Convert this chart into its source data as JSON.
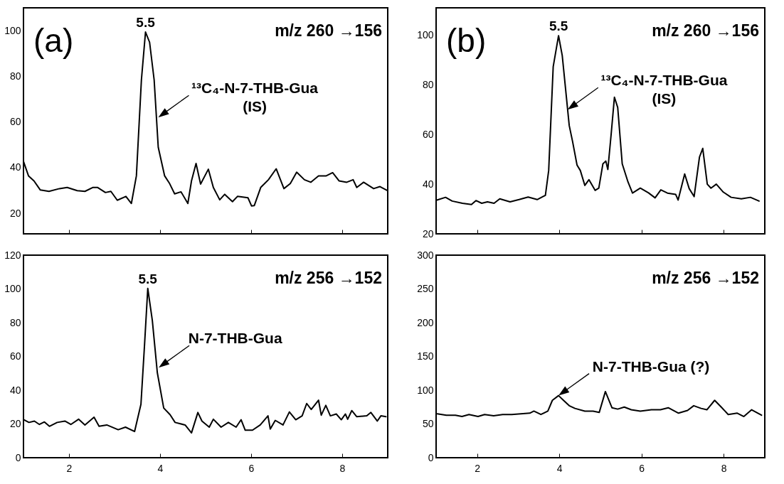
{
  "chart_data": [
    {
      "type": "line",
      "title": "(a)",
      "color": "#000000",
      "xlim": [
        1,
        9
      ],
      "xticks": [
        2,
        4,
        6,
        8
      ],
      "ylim": [
        11,
        110
      ],
      "yticks": [
        20,
        40,
        60,
        80,
        100
      ],
      "tick_labels": "y",
      "annotations": [
        "m/z 260 →156",
        {
          "text": "5.5",
          "x": 3.68,
          "y": 99.4
        },
        {
          "text": "¹³C₄-N-7-THB-Gua\n(IS)",
          "x": 3.96,
          "y": 62.0
        }
      ],
      "x": [
        1.0,
        1.11,
        1.23,
        1.37,
        1.56,
        1.79,
        1.96,
        2.18,
        2.35,
        2.52,
        2.63,
        2.8,
        2.92,
        3.06,
        3.25,
        3.37,
        3.48,
        3.59,
        3.68,
        3.77,
        3.87,
        3.96,
        4.1,
        4.21,
        4.32,
        4.46,
        4.61,
        4.69,
        4.79,
        4.89,
        5.06,
        5.17,
        5.31,
        5.42,
        5.59,
        5.7,
        5.93,
        6.01,
        6.07,
        6.21,
        6.38,
        6.55,
        6.72,
        6.86,
        7.0,
        7.17,
        7.31,
        7.48,
        7.65,
        7.79,
        7.93,
        8.1,
        8.24,
        8.32,
        8.47,
        8.69,
        8.83,
        9.0
      ],
      "values": [
        42.7,
        36.4,
        34.2,
        30.2,
        29.6,
        30.8,
        31.3,
        29.9,
        29.6,
        31.3,
        31.3,
        29.1,
        29.6,
        25.7,
        27.4,
        24.3,
        36.4,
        78.4,
        99.4,
        94.9,
        78.4,
        48.9,
        36.4,
        33.0,
        28.5,
        29.4,
        24.3,
        34.2,
        41.8,
        32.8,
        39.3,
        31.3,
        25.9,
        28.3,
        25.1,
        27.4,
        26.8,
        23.2,
        23.4,
        31.3,
        34.7,
        39.5,
        30.8,
        33.0,
        38.0,
        34.7,
        33.6,
        36.4,
        36.4,
        37.8,
        34.2,
        33.6,
        34.7,
        31.3,
        33.6,
        30.8,
        31.7,
        29.9
      ]
    },
    {
      "type": "line",
      "title": "(b)",
      "color": "#000000",
      "xlim": [
        1,
        9
      ],
      "xticks": [
        2,
        4,
        6,
        8
      ],
      "ylim": [
        20,
        111
      ],
      "yticks": [
        20,
        40,
        60,
        80,
        100
      ],
      "tick_labels": "y",
      "annotations": [
        "m/z 260 →156",
        {
          "text": "5.5",
          "x": 3.98,
          "y": 99.8
        },
        {
          "text": "¹³C₄-N-7-THB-Gua\n(IS)",
          "x": 4.2,
          "y": 70
        }
      ],
      "x": [
        1.02,
        1.23,
        1.39,
        1.64,
        1.86,
        1.97,
        2.11,
        2.25,
        2.41,
        2.55,
        2.8,
        3.02,
        3.24,
        3.46,
        3.66,
        3.74,
        3.85,
        3.98,
        4.07,
        4.24,
        4.32,
        4.43,
        4.51,
        4.62,
        4.72,
        4.87,
        4.96,
        5.06,
        5.13,
        5.18,
        5.26,
        5.34,
        5.42,
        5.53,
        5.67,
        5.78,
        5.97,
        6.17,
        6.33,
        6.47,
        6.63,
        6.83,
        6.89,
        7.05,
        7.16,
        7.28,
        7.41,
        7.49,
        7.6,
        7.69,
        7.82,
        7.99,
        8.18,
        8.43,
        8.65,
        8.86
      ],
      "values": [
        33.6,
        34.7,
        33.2,
        32.3,
        31.8,
        33.4,
        32.3,
        32.9,
        32.3,
        34.1,
        32.9,
        33.8,
        34.8,
        33.8,
        35.5,
        45.5,
        87.3,
        99.8,
        91.8,
        63.6,
        57.3,
        47.7,
        45.5,
        39.5,
        41.8,
        37.5,
        38.4,
        48.2,
        49.3,
        45.9,
        60.0,
        75.0,
        70.9,
        48.2,
        40.9,
        36.4,
        38.4,
        36.5,
        34.5,
        37.7,
        36.4,
        35.9,
        33.6,
        44.1,
        38.2,
        35.0,
        50.9,
        54.4,
        40.0,
        38.4,
        40.0,
        36.8,
        34.7,
        34.1,
        34.7,
        33.2
      ]
    },
    {
      "type": "line",
      "color": "#000000",
      "xlim": [
        1,
        9
      ],
      "xticks": [
        2,
        4,
        6,
        8
      ],
      "ylim": [
        0,
        120
      ],
      "yticks": [
        0,
        20,
        40,
        60,
        80,
        100,
        120
      ],
      "annotations": [
        "m/z 256 →152",
        {
          "text": "5.5",
          "x": 3.73,
          "y": 100.3
        },
        {
          "text": "N-7-THB-Gua",
          "x": 3.97,
          "y": 53.4
        }
      ],
      "x": [
        1.01,
        1.12,
        1.24,
        1.35,
        1.46,
        1.57,
        1.74,
        1.91,
        2.04,
        2.21,
        2.35,
        2.55,
        2.66,
        2.83,
        3.08,
        3.24,
        3.44,
        3.58,
        3.66,
        3.73,
        3.83,
        3.94,
        4.08,
        4.22,
        4.33,
        4.55,
        4.69,
        4.83,
        4.92,
        5.08,
        5.17,
        5.34,
        5.5,
        5.67,
        5.78,
        5.87,
        6.03,
        6.2,
        6.37,
        6.42,
        6.53,
        6.7,
        6.84,
        6.98,
        7.12,
        7.22,
        7.32,
        7.48,
        7.54,
        7.64,
        7.74,
        7.87,
        7.98,
        8.07,
        8.12,
        8.21,
        8.32,
        8.54,
        8.63,
        8.77,
        8.85,
        8.96
      ],
      "values": [
        22.5,
        20.9,
        21.7,
        19.7,
        21.2,
        18.6,
        20.9,
        21.7,
        19.7,
        22.8,
        19.4,
        24.0,
        18.6,
        19.4,
        16.6,
        18.1,
        15.5,
        31.7,
        67.4,
        100.3,
        81.3,
        50.3,
        29.4,
        25.5,
        20.9,
        19.4,
        14.7,
        26.8,
        21.7,
        18.1,
        22.8,
        18.1,
        20.9,
        18.1,
        22.5,
        16.3,
        16.3,
        19.4,
        24.8,
        17.0,
        22.1,
        19.4,
        27.1,
        22.5,
        24.8,
        32.1,
        28.6,
        34.1,
        25.2,
        31.0,
        24.8,
        25.9,
        22.5,
        25.9,
        22.8,
        27.9,
        24.3,
        24.8,
        26.8,
        21.7,
        24.8,
        24.3
      ]
    },
    {
      "type": "line",
      "color": "#000000",
      "xlim": [
        1,
        9
      ],
      "xticks": [
        2,
        4,
        6,
        8
      ],
      "ylim": [
        0,
        300
      ],
      "yticks": [
        0,
        50,
        100,
        150,
        200,
        250,
        300
      ],
      "annotations": [
        "m/z 256 →152",
        {
          "text": "N-7-THB-Gua (?)",
          "x": 3.98,
          "y": 92
        }
      ],
      "x": [
        1.03,
        1.25,
        1.47,
        1.63,
        1.8,
        2.02,
        2.18,
        2.4,
        2.62,
        2.84,
        3.06,
        3.28,
        3.38,
        3.55,
        3.72,
        3.83,
        3.98,
        4.1,
        4.24,
        4.38,
        4.62,
        4.82,
        4.97,
        5.12,
        5.28,
        5.42,
        5.58,
        5.75,
        5.97,
        6.24,
        6.46,
        6.65,
        6.9,
        7.12,
        7.27,
        7.45,
        7.59,
        7.78,
        7.94,
        8.11,
        8.33,
        8.49,
        8.68,
        8.92
      ],
      "values": [
        65,
        63,
        63,
        61,
        64,
        61,
        64,
        62,
        64,
        64,
        65,
        66,
        69,
        64,
        69,
        85,
        92,
        85,
        77,
        73,
        69,
        69,
        67,
        98,
        74,
        72,
        75,
        71,
        69,
        71,
        71,
        74,
        66,
        70,
        77,
        73,
        71,
        85,
        75,
        64,
        66,
        61,
        71,
        63
      ]
    }
  ]
}
